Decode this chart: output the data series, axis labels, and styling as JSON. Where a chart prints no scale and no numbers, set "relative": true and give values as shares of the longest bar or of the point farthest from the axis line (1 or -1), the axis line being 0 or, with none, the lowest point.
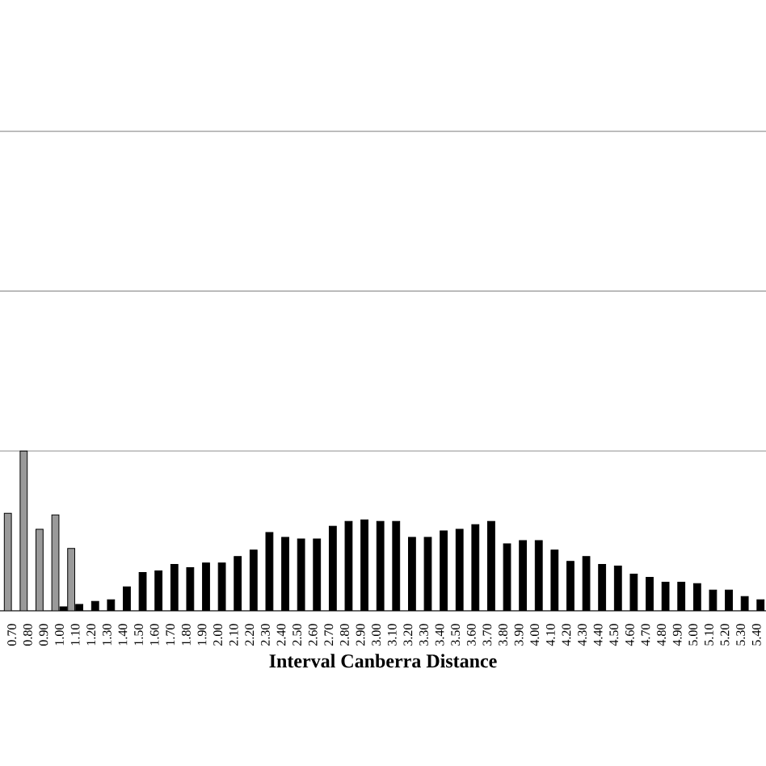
{
  "chart_data": {
    "type": "bar",
    "relative": true,
    "xlabel": "Interval Canberra Distance",
    "categories": [
      "0.70",
      "0.80",
      "0.90",
      "1.00",
      "1.10",
      "1.20",
      "1.30",
      "1.40",
      "1.50",
      "1.60",
      "1.70",
      "1.80",
      "1.90",
      "2.00",
      "2.10",
      "2.20",
      "2.30",
      "2.40",
      "2.50",
      "2.60",
      "2.70",
      "2.80",
      "2.90",
      "3.00",
      "3.10",
      "3.20",
      "3.30",
      "3.40",
      "3.50",
      "3.60",
      "3.70",
      "3.80",
      "3.90",
      "4.00",
      "4.10",
      "4.20",
      "4.30",
      "4.40",
      "4.50",
      "4.60",
      "4.70",
      "4.80",
      "4.90",
      "5.00",
      "5.10",
      "5.20",
      "5.30",
      "5.40"
    ],
    "series": [
      {
        "color": "#9a9a9a",
        "values": [
          0.61,
          1.0,
          0.51,
          0.6,
          0.39,
          null,
          null,
          null,
          null,
          null,
          null,
          null,
          null,
          null,
          null,
          null,
          null,
          null,
          null,
          null,
          null,
          null,
          null,
          null,
          null,
          null,
          null,
          null,
          null,
          null,
          null,
          null,
          null,
          null,
          null,
          null,
          null,
          null,
          null,
          null,
          null,
          null,
          null,
          null,
          null,
          null,
          null,
          null
        ]
      },
      {
        "color": "#000000",
        "values": [
          null,
          null,
          null,
          0.025,
          0.04,
          0.06,
          0.07,
          0.15,
          0.24,
          0.25,
          0.29,
          0.27,
          0.3,
          0.3,
          0.34,
          0.38,
          0.49,
          0.46,
          0.45,
          0.45,
          0.53,
          0.56,
          0.57,
          0.56,
          0.56,
          0.46,
          0.46,
          0.5,
          0.51,
          0.54,
          0.56,
          0.42,
          0.44,
          0.44,
          0.38,
          0.31,
          0.34,
          0.29,
          0.28,
          0.23,
          0.21,
          0.18,
          0.18,
          0.17,
          0.13,
          0.13,
          0.09,
          0.07
        ]
      }
    ],
    "grid": "y",
    "tick_labels": "x"
  }
}
